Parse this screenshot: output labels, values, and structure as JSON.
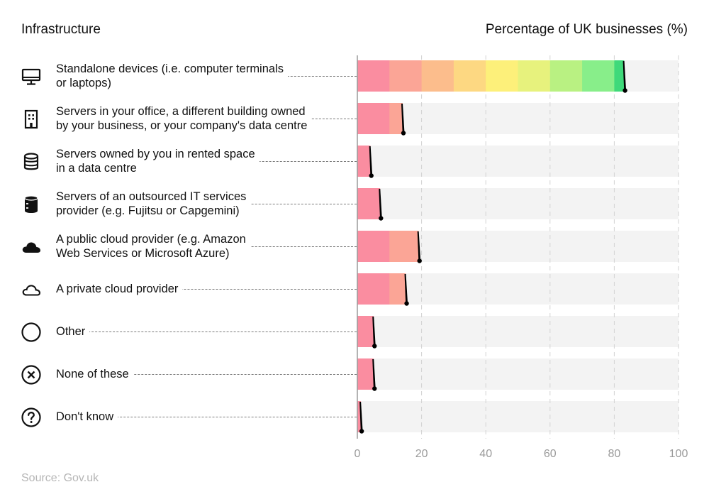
{
  "header": {
    "left_title": "Infrastructure",
    "right_title": "Percentage of UK businesses (%)"
  },
  "source": "Source: Gov.uk",
  "colors": {
    "track": "#f3f3f3",
    "grid": "#d2d2d2",
    "axis": "#9a9a9a",
    "segments": [
      "#fa8da0",
      "#fba596",
      "#fcbd8c",
      "#fdd882",
      "#fdf07a",
      "#e7f27d",
      "#b9f182",
      "#88ee8a",
      "#3fd97a"
    ],
    "marker": "#000000"
  },
  "rows": [
    {
      "label": "Standalone devices (i.e. computer terminals\nor laptops)",
      "icon": "monitor-icon"
    },
    {
      "label": "Servers in your office, a different building owned\nby your business, or your company's data centre",
      "icon": "building-icon"
    },
    {
      "label": "Servers owned by you in rented space\nin a data centre",
      "icon": "database-icon"
    },
    {
      "label": "Servers of an outsourced IT services\nprovider (e.g. Fujitsu or Capgemini)",
      "icon": "server-cylinder-icon"
    },
    {
      "label": "A public cloud provider (e.g. Amazon\nWeb Services or Microsoft Azure)",
      "icon": "cloud-filled-icon"
    },
    {
      "label": "A private cloud provider",
      "icon": "cloud-outline-icon"
    },
    {
      "label": "Other",
      "icon": "circle-icon"
    },
    {
      "label": "None of these",
      "icon": "x-circle-icon"
    },
    {
      "label": "Don't know",
      "icon": "question-circle-icon"
    }
  ],
  "chart_data": {
    "type": "bar",
    "orientation": "horizontal",
    "categories": [
      "Standalone devices (i.e. computer terminals or laptops)",
      "Servers in your office, a different building owned by your business, or your company's data centre",
      "Servers owned by you in rented space in a data centre",
      "Servers of an outsourced IT services provider (e.g. Fujitsu or Capgemini)",
      "A public cloud provider (e.g. Amazon Web Services or Microsoft Azure)",
      "A private cloud provider",
      "Other",
      "None of these",
      "Don't know"
    ],
    "values": [
      83,
      14,
      4,
      7,
      19,
      15,
      5,
      5,
      1
    ],
    "title": "Percentage of UK businesses (%)",
    "xlim": [
      0,
      100
    ],
    "xticks": [
      0,
      20,
      40,
      60,
      80,
      100
    ],
    "grid": true,
    "segment_size": 10
  }
}
